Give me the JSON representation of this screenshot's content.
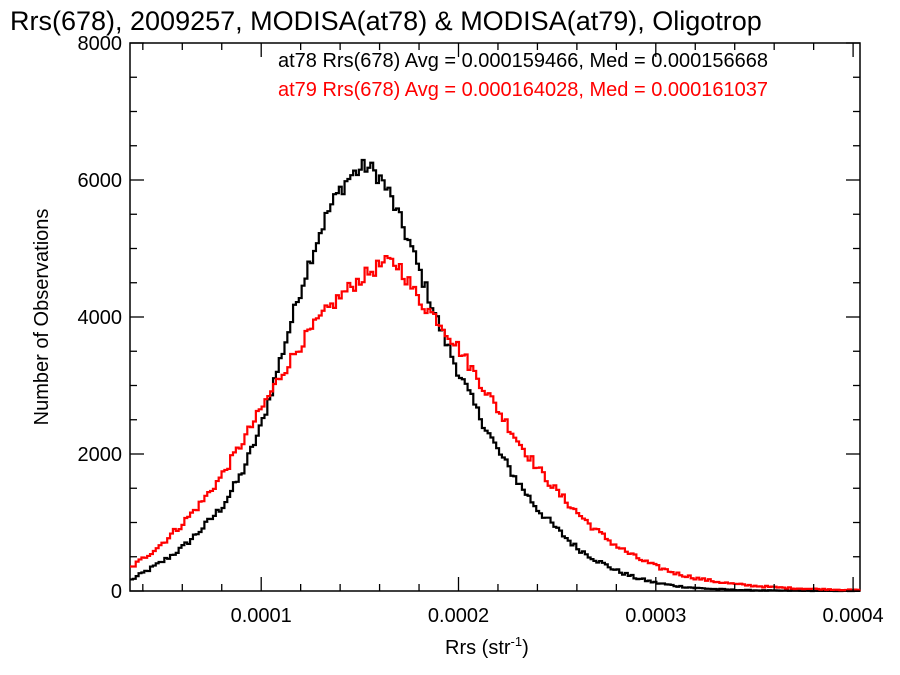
{
  "chart_data": {
    "type": "line",
    "title": "Rrs(678), 2009257, MODISA(at78) & MODISA(at79), Oligotrop",
    "xlabel_main": "Rrs (str",
    "xlabel_sup": "-1",
    "xlabel_close": ")",
    "ylabel": "Number of Observations",
    "xlim": [
      3.35e-05,
      0.0004035
    ],
    "ylim": [
      0,
      8000
    ],
    "xticks": [
      0.0001,
      0.0002,
      0.0003,
      0.0004
    ],
    "xtick_labels": [
      "0.0001",
      "0.0002",
      "0.0003",
      "0.0004"
    ],
    "yticks": [
      0,
      2000,
      4000,
      6000,
      8000
    ],
    "ytick_labels": [
      "0",
      "2000",
      "4000",
      "6000",
      "8000"
    ],
    "step_style": "histogram",
    "series": [
      {
        "name": "at78",
        "color": "#000000",
        "annotation": "at78 Rrs(678) Avg = 0.000159466, Med = 0.000156668",
        "points": [
          [
            3.35e-05,
            150
          ],
          [
            4e-05,
            260
          ],
          [
            5e-05,
            430
          ],
          [
            6e-05,
            630
          ],
          [
            7e-05,
            910
          ],
          [
            8e-05,
            1220
          ],
          [
            9e-05,
            1700
          ],
          [
            0.0001,
            2400
          ],
          [
            0.000105,
            2900
          ],
          [
            0.00011,
            3400
          ],
          [
            0.000115,
            3900
          ],
          [
            0.00012,
            4400
          ],
          [
            0.000125,
            4850
          ],
          [
            0.00013,
            5250
          ],
          [
            0.000135,
            5600
          ],
          [
            0.00014,
            5850
          ],
          [
            0.000145,
            6050
          ],
          [
            0.00015,
            6150
          ],
          [
            0.000153,
            6200
          ],
          [
            0.000156,
            6150
          ],
          [
            0.00016,
            6050
          ],
          [
            0.000165,
            5800
          ],
          [
            0.00017,
            5450
          ],
          [
            0.000175,
            5100
          ],
          [
            0.00018,
            4700
          ],
          [
            0.000185,
            4300
          ],
          [
            0.00019,
            3900
          ],
          [
            0.000195,
            3550
          ],
          [
            0.0002,
            3200
          ],
          [
            0.00021,
            2600
          ],
          [
            0.00022,
            2050
          ],
          [
            0.00023,
            1600
          ],
          [
            0.00024,
            1200
          ],
          [
            0.00025,
            900
          ],
          [
            0.00026,
            630
          ],
          [
            0.00027,
            450
          ],
          [
            0.00028,
            300
          ],
          [
            0.00029,
            190
          ],
          [
            0.0003,
            120
          ],
          [
            0.00031,
            75
          ],
          [
            0.00032,
            45
          ],
          [
            0.00033,
            28
          ],
          [
            0.00034,
            16
          ],
          [
            0.00035,
            10
          ],
          [
            0.00036,
            6
          ],
          [
            0.00037,
            4
          ],
          [
            0.00038,
            2
          ],
          [
            0.00039,
            1
          ],
          [
            0.0004,
            0
          ]
        ]
      },
      {
        "name": "at79",
        "color": "#ff0000",
        "annotation": "at79 Rrs(678) Avg = 0.000164028, Med = 0.000161037",
        "points": [
          [
            3.35e-05,
            330
          ],
          [
            4e-05,
            470
          ],
          [
            5e-05,
            700
          ],
          [
            6e-05,
            980
          ],
          [
            7e-05,
            1300
          ],
          [
            8e-05,
            1680
          ],
          [
            9e-05,
            2150
          ],
          [
            0.0001,
            2650
          ],
          [
            0.00011,
            3150
          ],
          [
            0.00012,
            3600
          ],
          [
            0.00013,
            3980
          ],
          [
            0.00014,
            4300
          ],
          [
            0.00015,
            4550
          ],
          [
            0.00016,
            4750
          ],
          [
            0.000165,
            4800
          ],
          [
            0.00017,
            4750
          ],
          [
            0.000175,
            4500
          ],
          [
            0.00018,
            4250
          ],
          [
            0.00019,
            3950
          ],
          [
            0.0002,
            3550
          ],
          [
            0.00021,
            3100
          ],
          [
            0.00022,
            2650
          ],
          [
            0.00023,
            2200
          ],
          [
            0.00024,
            1800
          ],
          [
            0.00025,
            1450
          ],
          [
            0.00026,
            1150
          ],
          [
            0.00027,
            880
          ],
          [
            0.00028,
            660
          ],
          [
            0.00029,
            490
          ],
          [
            0.0003,
            360
          ],
          [
            0.00031,
            260
          ],
          [
            0.00032,
            190
          ],
          [
            0.00033,
            140
          ],
          [
            0.00034,
            100
          ],
          [
            0.00035,
            75
          ],
          [
            0.00036,
            55
          ],
          [
            0.00037,
            40
          ],
          [
            0.00038,
            30
          ],
          [
            0.00039,
            22
          ],
          [
            0.0004,
            15
          ]
        ]
      }
    ]
  }
}
